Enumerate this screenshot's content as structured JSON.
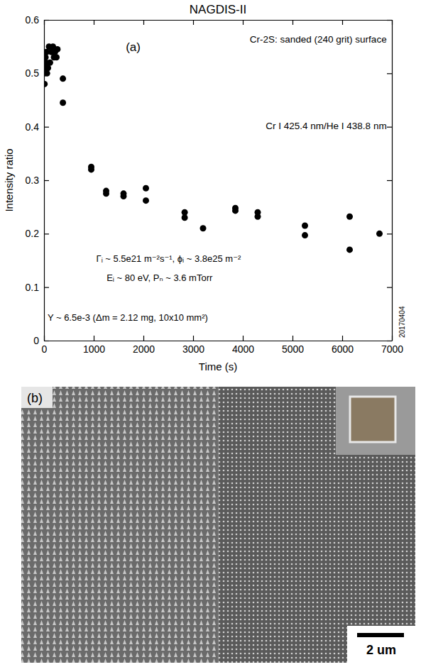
{
  "chart_data": {
    "type": "scatter",
    "title": "NAGDIS-II",
    "x_label": "Time (s)",
    "y_label": "Intensity ratio",
    "x": [
      10,
      10,
      20,
      30,
      40,
      50,
      60,
      80,
      100,
      120,
      150,
      180,
      200,
      220,
      250,
      270,
      380,
      380,
      950,
      950,
      1250,
      1250,
      1600,
      1600,
      2050,
      2050,
      2830,
      2830,
      3200,
      3850,
      3850,
      4300,
      4300,
      5250,
      5250,
      6150,
      6150,
      6750
    ],
    "values": [
      0.48,
      0.5,
      0.51,
      0.53,
      0.52,
      0.54,
      0.5,
      0.51,
      0.55,
      0.52,
      0.54,
      0.55,
      0.53,
      0.54,
      0.53,
      0.545,
      0.49,
      0.445,
      0.325,
      0.32,
      0.28,
      0.275,
      0.275,
      0.27,
      0.285,
      0.262,
      0.24,
      0.23,
      0.21,
      0.248,
      0.243,
      0.24,
      0.232,
      0.215,
      0.197,
      0.232,
      0.17,
      0.2
    ],
    "xlim": [
      0,
      7000
    ],
    "xticks": [
      0,
      1000,
      2000,
      3000,
      4000,
      5000,
      6000,
      7000
    ],
    "ylim": [
      0,
      0.6
    ],
    "yticks": [
      0,
      0.1,
      0.2,
      0.3,
      0.4,
      0.5,
      0.6
    ],
    "color": "#000000",
    "marker": "circle",
    "grid": false,
    "annotations": [
      "(a)",
      "Cr-2S: sanded (240 grit) surface",
      "Cr I 425.4 nm/He I 438.8 nm",
      "Γᵢ ~ 5.5e21 m⁻²s⁻¹, ϕᵢ ~ 3.8e25 m⁻²",
      "Eᵢ ~ 80 eV, Pₙ ~ 3.6 mTorr",
      "Y ~ 6.5e-3 (Δm = 2.12 mg, 10x10 mm²)",
      "20170404"
    ]
  },
  "image_panel": {
    "label": "(b)",
    "scale_bar": "2 um"
  }
}
